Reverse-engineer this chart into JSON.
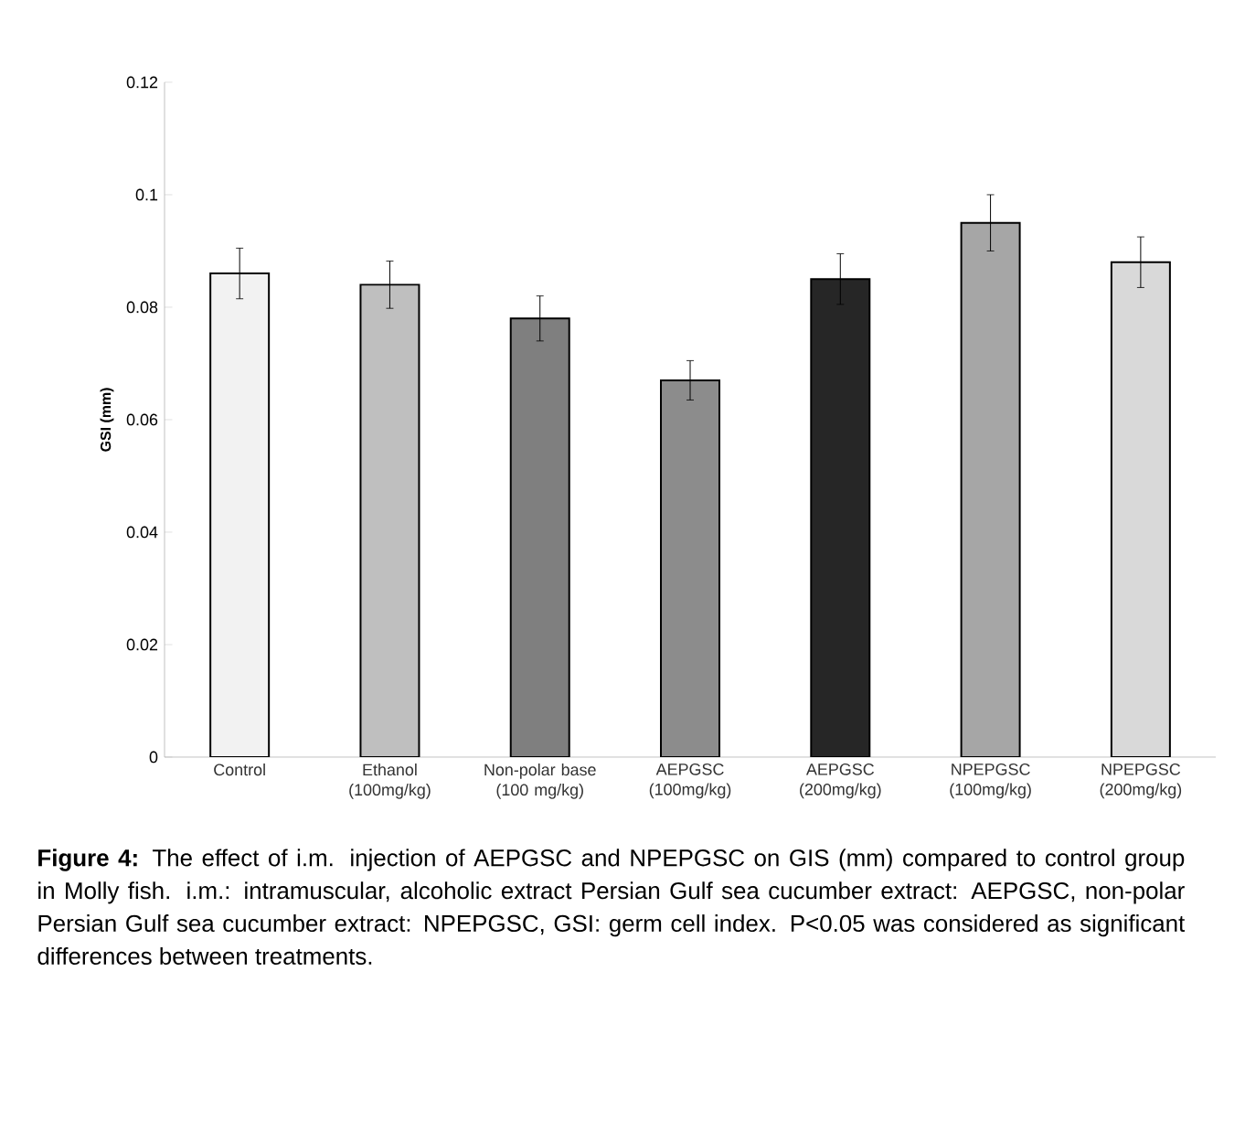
{
  "chart_data": {
    "type": "bar",
    "categories": [
      "Control",
      "Ethanol (100mg/kg)",
      "Non-polar base (100 mg/kg)",
      "AEPGSC (100mg/kg)",
      "AEPGSC (200mg/kg)",
      "NPEPGSC (100mg/kg)",
      "NPEPGSC (200mg/kg)"
    ],
    "values": [
      0.086,
      0.084,
      0.078,
      0.067,
      0.085,
      0.095,
      0.088
    ],
    "errors": [
      0.0045,
      0.0042,
      0.004,
      0.0035,
      0.0045,
      0.005,
      0.0045
    ],
    "colors": [
      "#f2f2f2",
      "#bfbfbf",
      "#7f7f7f",
      "#8c8c8c",
      "#262626",
      "#a6a6a6",
      "#d9d9d9"
    ],
    "ylabel": "GSI (mm)",
    "ylim": [
      0,
      0.12
    ],
    "yticks": [
      0,
      0.02,
      0.04,
      0.06,
      0.08,
      0.1,
      0.12
    ],
    "grid": false,
    "annotations": [
      "**Figure 4:** The effect of i.m. injection of AEPGSC and NPEPGSC on GIS (mm) compared to control group in Molly fish. i.m.: intramuscular, alcoholic extract Persian Gulf sea cucumber extract: AEPGSC, non-polar Persian Gulf sea cucumber extract: NPEPGSC, GSI: germ cell index. P<0.05 was considered as significant differences between treatments."
    ]
  }
}
